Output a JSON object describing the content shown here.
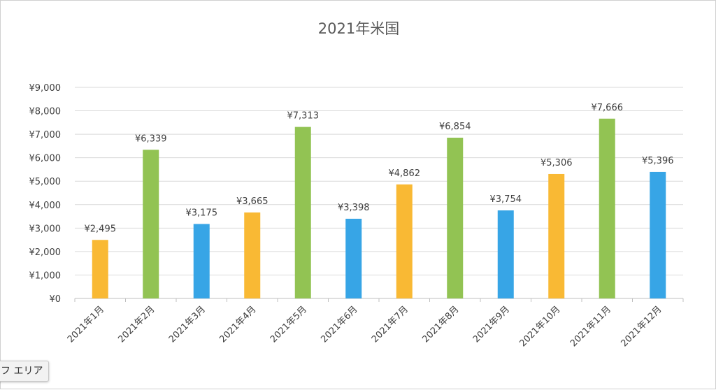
{
  "chart_data": {
    "type": "bar",
    "title": "2021年米国",
    "xlabel": "",
    "ylabel": "",
    "categories": [
      "2021年1月",
      "2021年2月",
      "2021年3月",
      "2021年4月",
      "2021年5月",
      "2021年6月",
      "2021年7月",
      "2021年8月",
      "2021年9月",
      "2021年10月",
      "2021年11月",
      "2021年12月"
    ],
    "values": [
      2495,
      6339,
      3175,
      3665,
      7313,
      3398,
      4862,
      6854,
      3754,
      5306,
      7666,
      5396
    ],
    "data_labels": [
      "¥2,495",
      "¥6,339",
      "¥3,175",
      "¥3,665",
      "¥7,313",
      "¥3,398",
      "¥4,862",
      "¥6,854",
      "¥3,754",
      "¥5,306",
      "¥7,666",
      "¥5,396"
    ],
    "bar_colors": [
      "#F9B934",
      "#92C353",
      "#37A5E6",
      "#F9B934",
      "#92C353",
      "#37A5E6",
      "#F9B934",
      "#92C353",
      "#37A5E6",
      "#F9B934",
      "#92C353",
      "#37A5E6"
    ],
    "ylim": [
      0,
      9000
    ],
    "yticks": [
      0,
      1000,
      2000,
      3000,
      4000,
      5000,
      6000,
      7000,
      8000,
      9000
    ],
    "ytick_labels": [
      "¥0",
      "¥1,000",
      "¥2,000",
      "¥3,000",
      "¥4,000",
      "¥5,000",
      "¥6,000",
      "¥7,000",
      "¥8,000",
      "¥9,000"
    ],
    "grid": true,
    "legend": false
  },
  "ui": {
    "tooltip_text": "フ エリア"
  }
}
